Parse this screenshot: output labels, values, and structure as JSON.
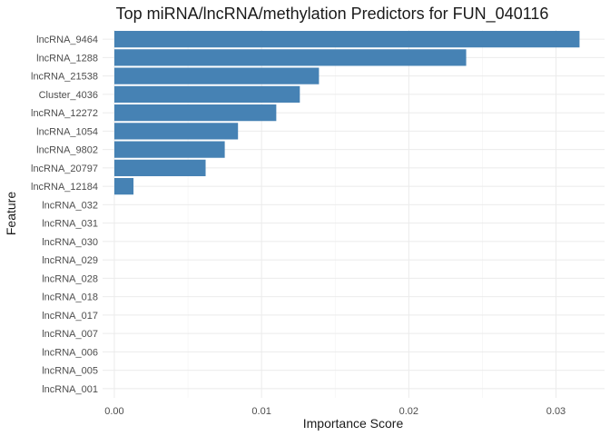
{
  "chart_data": {
    "type": "bar",
    "orientation": "horizontal",
    "title": "Top miRNA/lncRNA/methylation Predictors for FUN_040116",
    "xlabel": "Importance Score",
    "ylabel": "Feature",
    "xlim": [
      -0.0008,
      0.0333
    ],
    "xticks": [
      0.0,
      0.01,
      0.02,
      0.03
    ],
    "xtick_labels": [
      "0.00",
      "0.01",
      "0.02",
      "0.03"
    ],
    "bar_color": "#4682b4",
    "grid": true,
    "legend": "none",
    "categories": [
      "lncRNA_9464",
      "lncRNA_1288",
      "lncRNA_21538",
      "Cluster_4036",
      "lncRNA_12272",
      "lncRNA_1054",
      "lncRNA_9802",
      "lncRNA_20797",
      "lncRNA_12184",
      "lncRNA_032",
      "lncRNA_031",
      "lncRNA_030",
      "lncRNA_029",
      "lncRNA_028",
      "lncRNA_018",
      "lncRNA_017",
      "lncRNA_007",
      "lncRNA_006",
      "lncRNA_005",
      "lncRNA_001"
    ],
    "values": [
      0.0316,
      0.0239,
      0.0139,
      0.0126,
      0.011,
      0.0084,
      0.0075,
      0.0062,
      0.0013,
      0,
      0,
      0,
      0,
      0,
      0,
      0,
      0,
      0,
      0,
      0
    ]
  }
}
